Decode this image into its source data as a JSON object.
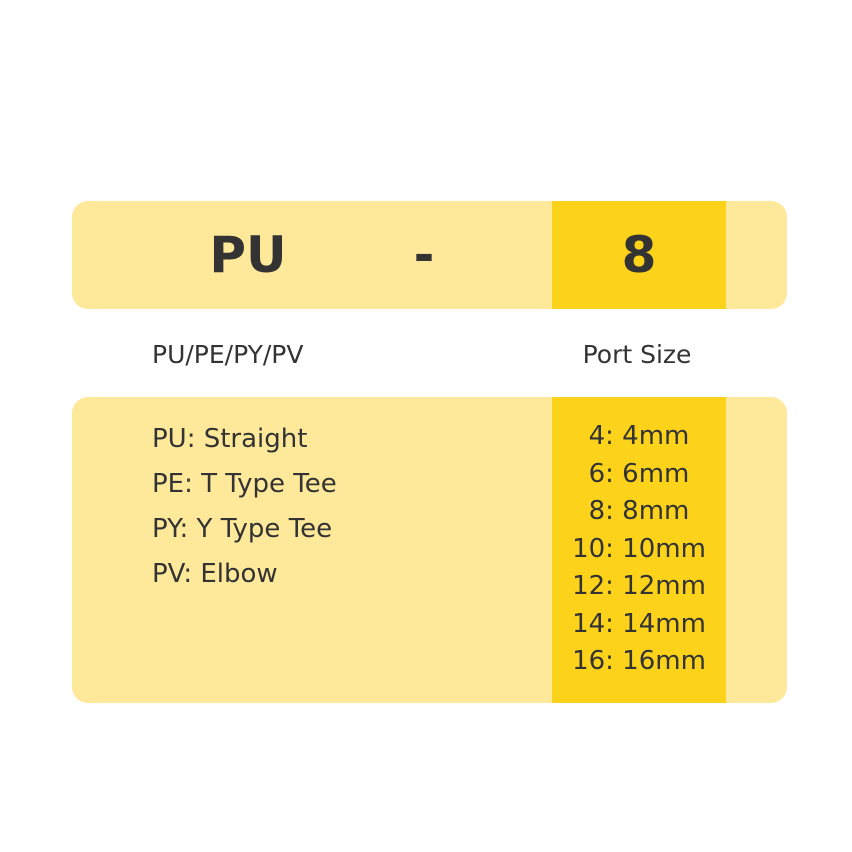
{
  "code": {
    "series": "PU",
    "separator": "-",
    "size": "8"
  },
  "labels": {
    "series": "PU/PE/PY/PV",
    "size": "Port Size"
  },
  "types": [
    "PU: Straight",
    "PE: T Type Tee",
    "PY: Y Type Tee",
    "PV: Elbow"
  ],
  "sizes": [
    "4: 4mm",
    "6: 6mm",
    "8: 8mm",
    "10: 10mm",
    "12: 12mm",
    "14: 14mm",
    "16: 16mm"
  ],
  "colors": {
    "light": "#FEE89A",
    "highlight": "#FDD21B",
    "text": "#333333"
  }
}
